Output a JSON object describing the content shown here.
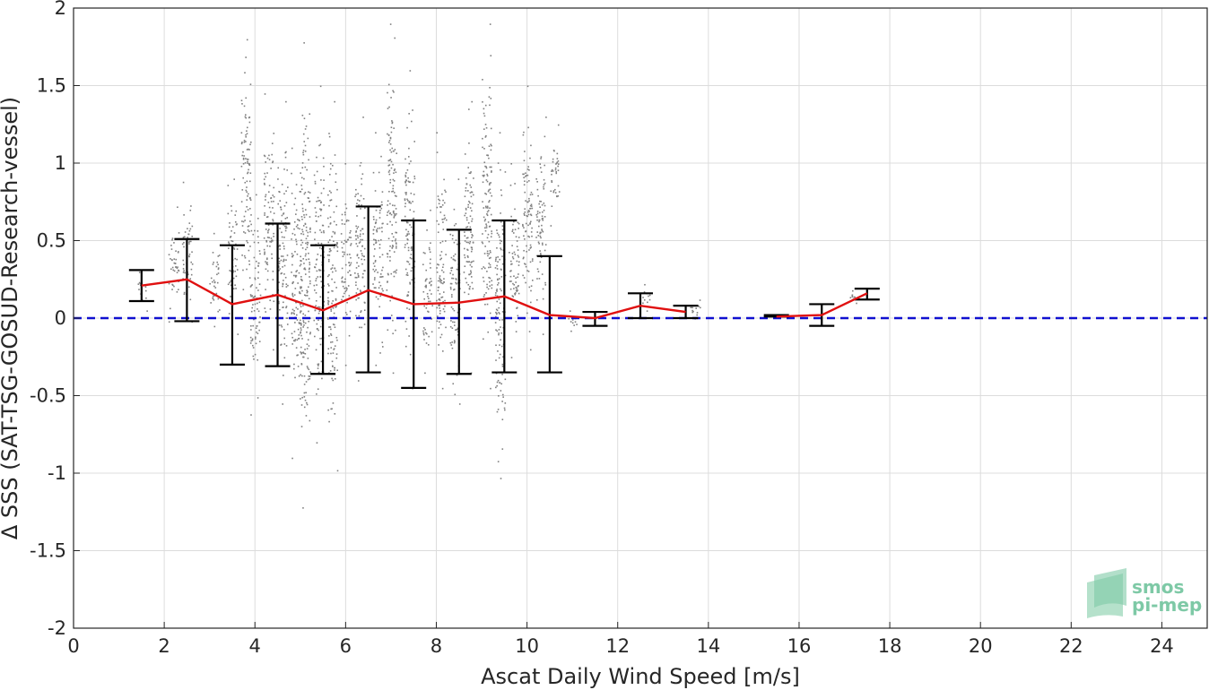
{
  "chart_data": {
    "type": "scatter",
    "xlabel": "Ascat Daily Wind Speed [m/s]",
    "ylabel": "Δ SSS (SAT-TSG-GOSUD-Research-vessel)",
    "xlim": [
      0,
      25
    ],
    "ylim": [
      -2,
      2
    ],
    "xticks": [
      0,
      2,
      4,
      6,
      8,
      10,
      12,
      14,
      16,
      18,
      20,
      22,
      24
    ],
    "yticks": [
      -2,
      -1.5,
      -1,
      -0.5,
      0,
      0.5,
      1,
      1.5,
      2
    ],
    "grid": true,
    "reference_line": {
      "y": 0,
      "color": "#1010d0",
      "style": "dashed"
    },
    "mean_series": {
      "color": "#e01010",
      "points": [
        {
          "x": 1.5,
          "y": 0.21,
          "low": 0.11,
          "high": 0.31
        },
        {
          "x": 2.5,
          "y": 0.25,
          "low": -0.02,
          "high": 0.51
        },
        {
          "x": 3.5,
          "y": 0.09,
          "low": -0.3,
          "high": 0.47
        },
        {
          "x": 4.5,
          "y": 0.15,
          "low": -0.31,
          "high": 0.61
        },
        {
          "x": 5.5,
          "y": 0.05,
          "low": -0.36,
          "high": 0.47
        },
        {
          "x": 6.5,
          "y": 0.18,
          "low": -0.35,
          "high": 0.72
        },
        {
          "x": 7.5,
          "y": 0.09,
          "low": -0.45,
          "high": 0.63
        },
        {
          "x": 8.5,
          "y": 0.1,
          "low": -0.36,
          "high": 0.57
        },
        {
          "x": 9.5,
          "y": 0.14,
          "low": -0.35,
          "high": 0.63
        },
        {
          "x": 10.5,
          "y": 0.02,
          "low": -0.35,
          "high": 0.4
        },
        {
          "x": 11.5,
          "y": 0.0,
          "low": -0.05,
          "high": 0.04
        },
        {
          "x": 12.5,
          "y": 0.08,
          "low": 0.0,
          "high": 0.16
        },
        {
          "x": 13.5,
          "y": 0.04,
          "low": 0.0,
          "high": 0.08
        },
        {
          "x": 15.5,
          "y": 0.01,
          "low": 0.01,
          "high": 0.02
        },
        {
          "x": 16.5,
          "y": 0.02,
          "low": -0.05,
          "high": 0.09
        },
        {
          "x": 17.5,
          "y": 0.16,
          "low": 0.12,
          "high": 0.19
        }
      ]
    },
    "scatter_clusters": {
      "color": "#808080",
      "columns": [
        {
          "x": 1.5,
          "ymin": 0.05,
          "ymax": 0.3
        },
        {
          "x": 2.2,
          "ymin": -0.02,
          "ymax": 0.72
        },
        {
          "x": 2.5,
          "ymin": -0.02,
          "ymax": 0.88
        },
        {
          "x": 3.1,
          "ymin": -0.05,
          "ymax": 0.55
        },
        {
          "x": 3.5,
          "ymin": -0.1,
          "ymax": 0.9
        },
        {
          "x": 3.8,
          "ymin": 0.0,
          "ymax": 1.8
        },
        {
          "x": 4.0,
          "ymin": -0.62,
          "ymax": 0.8
        },
        {
          "x": 4.3,
          "ymin": -0.2,
          "ymax": 1.45
        },
        {
          "x": 4.6,
          "ymin": -0.55,
          "ymax": 1.4
        },
        {
          "x": 4.9,
          "ymin": -0.9,
          "ymax": 1.1
        },
        {
          "x": 5.1,
          "ymin": -1.22,
          "ymax": 1.78
        },
        {
          "x": 5.4,
          "ymin": -0.8,
          "ymax": 1.5
        },
        {
          "x": 5.7,
          "ymin": -0.98,
          "ymax": 1.4
        },
        {
          "x": 6.0,
          "ymin": -0.3,
          "ymax": 1.0
        },
        {
          "x": 6.3,
          "ymin": -0.4,
          "ymax": 1.3
        },
        {
          "x": 6.7,
          "ymin": -0.3,
          "ymax": 1.2
        },
        {
          "x": 7.0,
          "ymin": -0.35,
          "ymax": 1.9
        },
        {
          "x": 7.4,
          "ymin": -0.45,
          "ymax": 1.6
        },
        {
          "x": 7.8,
          "ymin": -0.35,
          "ymax": 0.7
        },
        {
          "x": 8.1,
          "ymin": -0.45,
          "ymax": 1.2
        },
        {
          "x": 8.4,
          "ymin": -0.55,
          "ymax": 0.9
        },
        {
          "x": 8.7,
          "ymin": -0.35,
          "ymax": 1.4
        },
        {
          "x": 9.1,
          "ymin": -0.45,
          "ymax": 1.9
        },
        {
          "x": 9.4,
          "ymin": -1.03,
          "ymax": 1.2
        },
        {
          "x": 9.7,
          "ymin": -0.25,
          "ymax": 1.0
        },
        {
          "x": 10.0,
          "ymin": -0.2,
          "ymax": 1.5
        },
        {
          "x": 10.3,
          "ymin": -0.1,
          "ymax": 1.3
        },
        {
          "x": 10.6,
          "ymin": 0.6,
          "ymax": 1.25
        },
        {
          "x": 11.0,
          "ymin": -0.08,
          "ymax": 0.05
        },
        {
          "x": 12.6,
          "ymin": 0.05,
          "ymax": 0.22
        },
        {
          "x": 13.7,
          "ymin": 0.0,
          "ymax": 0.12
        },
        {
          "x": 17.2,
          "ymin": 0.1,
          "ymax": 0.18
        }
      ]
    }
  },
  "logo": {
    "line1": "smos",
    "line2": "pi-mep"
  }
}
